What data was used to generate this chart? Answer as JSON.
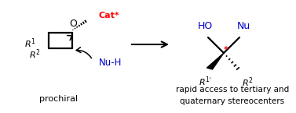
{
  "bg_color": "#ffffff",
  "arrow_color": "#000000",
  "cat_color": "#ff0000",
  "nu_color": "#0000cc",
  "ho_color": "#0000cc",
  "text_color": "#000000",
  "red_star_color": "#ff0000",
  "prochiral_text": "prochiral",
  "bottom_text_line1": "rapid access to tertiary and",
  "bottom_text_line2": "quaternary stereocenters",
  "figsize": [
    3.77,
    1.45
  ],
  "dpi": 100
}
